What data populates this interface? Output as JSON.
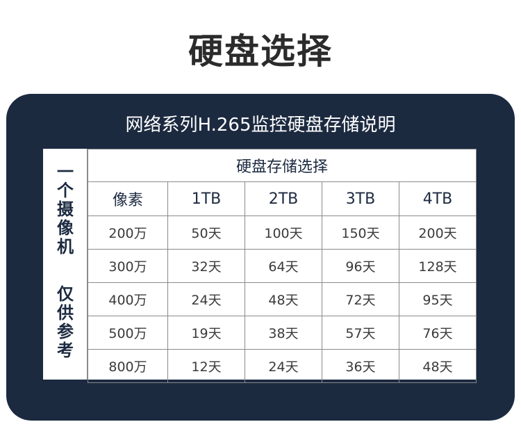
{
  "page_title": "硬盘选择",
  "panel": {
    "title": "网络系列H.265监控硬盘存储说明",
    "side_label_top": [
      "一",
      "个",
      "摄",
      "像",
      "机"
    ],
    "side_label_bottom": [
      "仅",
      "供",
      "参",
      "考"
    ],
    "table": {
      "group_header": "硬盘存储选择",
      "columns": [
        "像素",
        "1TB",
        "2TB",
        "3TB",
        "4TB"
      ],
      "rows": [
        [
          "200万",
          "50天",
          "100天",
          "150天",
          "200天"
        ],
        [
          "300万",
          "32天",
          "64天",
          "96天",
          "128天"
        ],
        [
          "400万",
          "24天",
          "48天",
          "72天",
          "95天"
        ],
        [
          "500万",
          "19天",
          "38天",
          "57天",
          "76天"
        ],
        [
          "800万",
          "12天",
          "24天",
          "36天",
          "48天"
        ]
      ]
    }
  },
  "colors": {
    "panel_bg": "#1c2a40",
    "title_text": "#2b2b2b",
    "table_bg": "#ffffff"
  }
}
